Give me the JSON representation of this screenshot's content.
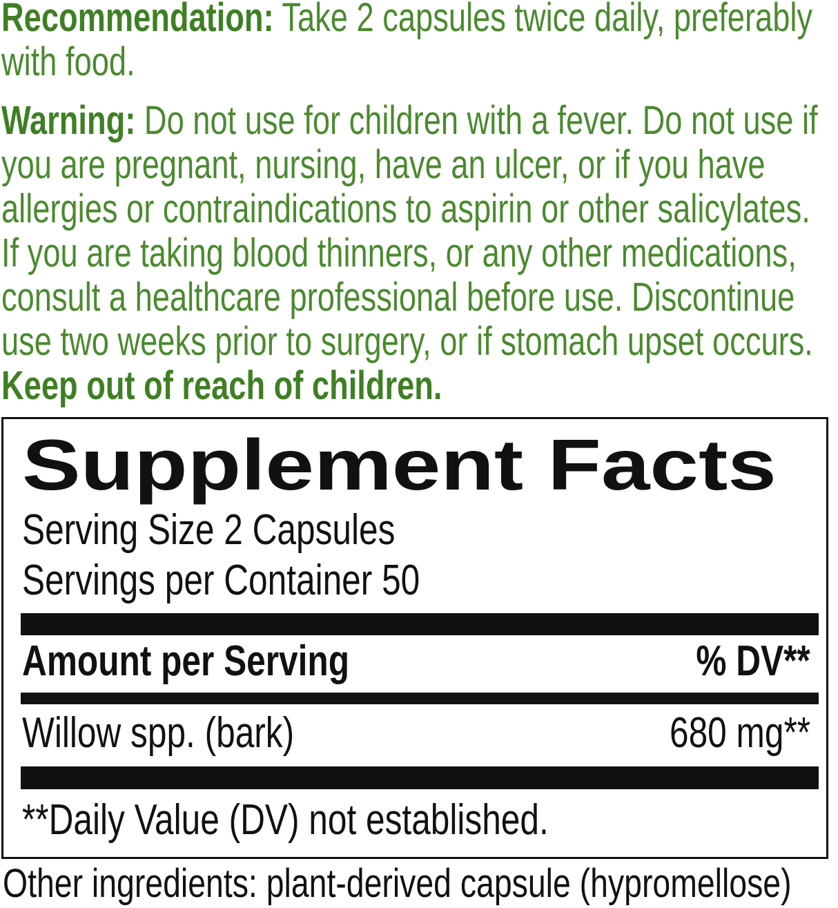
{
  "recommendation": {
    "label": "Recommendation:",
    "text": "Take 2 capsules twice daily, preferably with food."
  },
  "warning": {
    "label": "Warning:",
    "text": "Do not use for children with a fever. Do not use if you are pregnant, nursing, have an ulcer, or if you have allergies or contraindications to aspirin or other salicylates. If you are taking blood thinners, or any other medications, consult a healthcare professional before use. Discontinue use two weeks prior to surgery, or if stomach upset occurs.",
    "emphasis": "Keep out of reach of children."
  },
  "facts": {
    "title": "Supplement Facts",
    "serving_size": "Serving Size 2 Capsules",
    "servings_per_container": "Servings per Container 50",
    "header": {
      "amount": "Amount per Serving",
      "dv": "% DV**"
    },
    "rows": [
      {
        "name": "Willow spp. (bark)",
        "amount": "680 mg**"
      }
    ],
    "footnote": "**Daily Value (DV) not established."
  },
  "other_ingredients": "Other ingredients: plant-derived capsule (hypromellose)"
}
